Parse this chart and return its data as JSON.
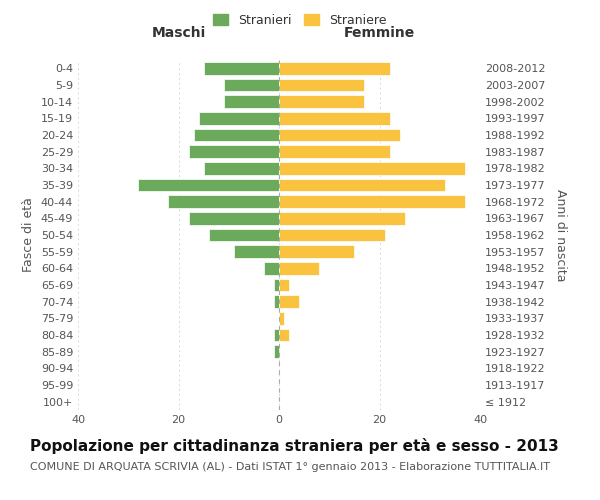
{
  "age_groups": [
    "100+",
    "95-99",
    "90-94",
    "85-89",
    "80-84",
    "75-79",
    "70-74",
    "65-69",
    "60-64",
    "55-59",
    "50-54",
    "45-49",
    "40-44",
    "35-39",
    "30-34",
    "25-29",
    "20-24",
    "15-19",
    "10-14",
    "5-9",
    "0-4"
  ],
  "birth_years": [
    "≤ 1912",
    "1913-1917",
    "1918-1922",
    "1923-1927",
    "1928-1932",
    "1933-1937",
    "1938-1942",
    "1943-1947",
    "1948-1952",
    "1953-1957",
    "1958-1962",
    "1963-1967",
    "1968-1972",
    "1973-1977",
    "1978-1982",
    "1983-1987",
    "1988-1992",
    "1993-1997",
    "1998-2002",
    "2003-2007",
    "2008-2012"
  ],
  "males": [
    0,
    0,
    0,
    1,
    1,
    0,
    1,
    1,
    3,
    9,
    14,
    18,
    22,
    28,
    15,
    18,
    17,
    16,
    11,
    11,
    15
  ],
  "females": [
    0,
    0,
    0,
    0,
    2,
    1,
    4,
    2,
    8,
    15,
    21,
    25,
    37,
    33,
    37,
    22,
    24,
    22,
    17,
    17,
    22
  ],
  "male_color": "#6aaa5a",
  "female_color": "#f9c340",
  "background_color": "#ffffff",
  "grid_color": "#cccccc",
  "title": "Popolazione per cittadinanza straniera per età e sesso - 2013",
  "subtitle": "COMUNE DI ARQUATA SCRIVIA (AL) - Dati ISTAT 1° gennaio 2013 - Elaborazione TUTTITALIA.IT",
  "left_header": "Maschi",
  "right_header": "Femmine",
  "left_ylabel": "Fasce di età",
  "right_ylabel": "Anni di nascita",
  "legend_male": "Stranieri",
  "legend_female": "Straniere",
  "xlim": 40,
  "title_fontsize": 11,
  "subtitle_fontsize": 8,
  "tick_fontsize": 8,
  "label_fontsize": 9
}
